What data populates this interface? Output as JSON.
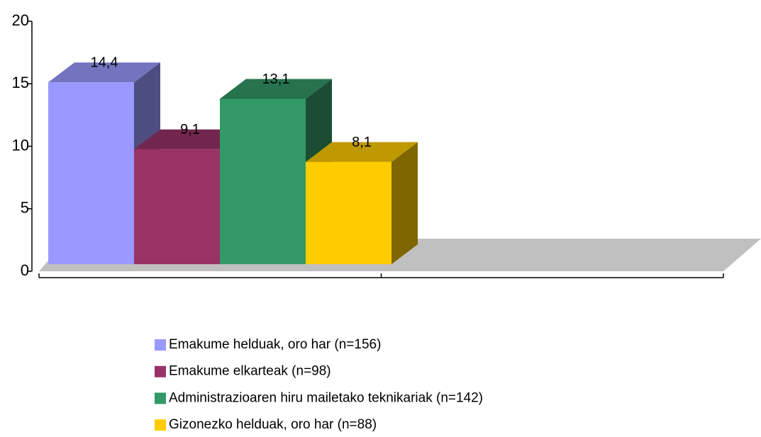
{
  "chart_data": {
    "type": "bar3d",
    "categories": [
      null,
      null
    ],
    "series": [
      {
        "name": "Emakume helduak, oro har (n=156)",
        "color": "#9999ff",
        "values": [
          14.4,
          null
        ],
        "value_labels": [
          "14,4",
          null
        ]
      },
      {
        "name": "Emakume elkarteak (n=98)",
        "color": "#993366",
        "values": [
          9.1,
          null
        ],
        "value_labels": [
          "9,1",
          null
        ]
      },
      {
        "name": "Administrazioaren hiru mailetako teknikariak (n=142)",
        "color": "#339966",
        "values": [
          13.1,
          null
        ],
        "value_labels": [
          "13,1",
          null
        ]
      },
      {
        "name": "Gizonezko helduak, oro har (n=88)",
        "color": "#ffcc00",
        "values": [
          8.1,
          null
        ],
        "value_labels": [
          "8,1",
          null
        ]
      }
    ],
    "ylim": [
      0,
      20
    ],
    "yticks": [
      0,
      5,
      10,
      15,
      20
    ]
  }
}
